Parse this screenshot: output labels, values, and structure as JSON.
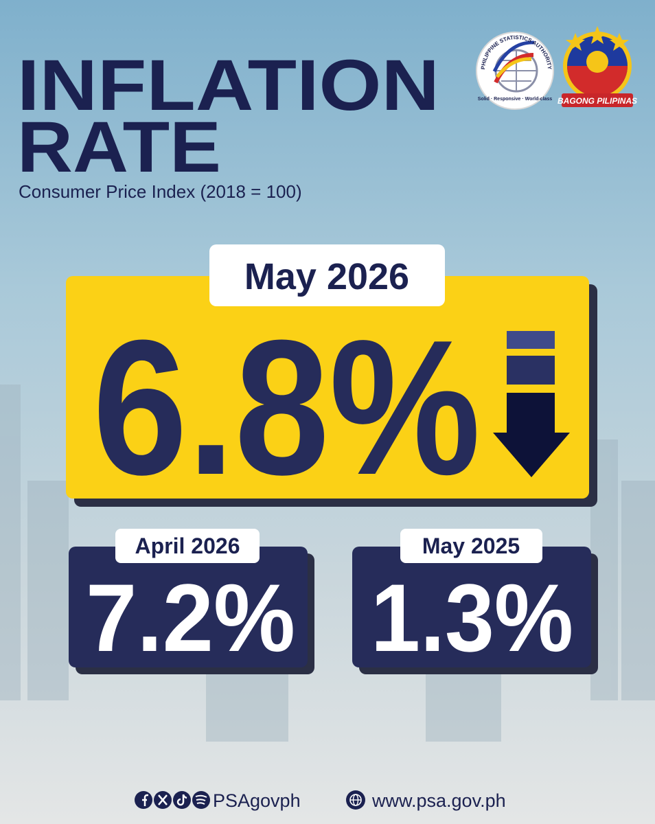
{
  "header": {
    "title_line1": "INFLATION",
    "title_line2": "RATE",
    "subtitle": "Consumer Price Index (2018 = 100)"
  },
  "logos": {
    "psa_name": "PHILIPPINE STATISTICS AUTHORITY",
    "psa_motto": "Solid · Responsive · World-class",
    "bagong": "BAGONG PILIPINAS"
  },
  "headline": {
    "period": "May 2026",
    "rate": "6.8%"
  },
  "comparisons": [
    {
      "period": "April 2026",
      "rate": "7.2%"
    },
    {
      "period": "May 2025",
      "rate": "1.3%"
    }
  ],
  "footer": {
    "social_handle": "PSAgovph",
    "website": "www.psa.gov.ph"
  }
}
